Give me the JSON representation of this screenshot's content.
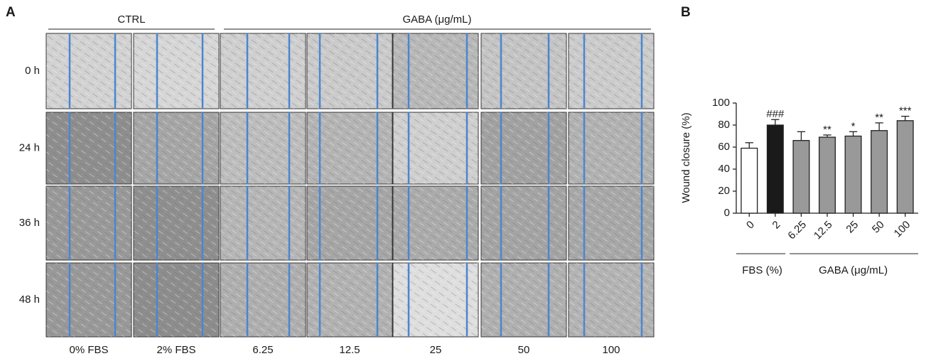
{
  "panel_a": {
    "label": "A",
    "group_labels": [
      "CTRL",
      "GABA (μg/mL)"
    ],
    "row_labels": [
      "0 h",
      "24 h",
      "36 h",
      "48 h"
    ],
    "column_labels": [
      "0% FBS",
      "2% FBS",
      "6.25",
      "12.5",
      "25",
      "50",
      "100"
    ]
  },
  "chart_data": {
    "type": "bar",
    "panel_label": "B",
    "ylabel": "Wound closure (%)",
    "categories": [
      "0",
      "2",
      "6.25",
      "12.5",
      "25",
      "50",
      "100"
    ],
    "values": [
      59,
      80,
      66,
      69,
      70,
      75,
      84
    ],
    "errors": [
      5,
      5,
      8,
      2,
      4,
      7,
      4
    ],
    "colors": [
      "#ffffff",
      "#1a1a1a",
      "#999999",
      "#999999",
      "#999999",
      "#999999",
      "#999999"
    ],
    "annotations": [
      null,
      "###",
      null,
      "**",
      "*",
      "**",
      "***"
    ],
    "group_labels": [
      "FBS (%)",
      "GABA (μg/mL)"
    ],
    "ylim": [
      0,
      100
    ],
    "yticks": [
      0,
      20,
      40,
      60,
      80,
      100
    ]
  }
}
